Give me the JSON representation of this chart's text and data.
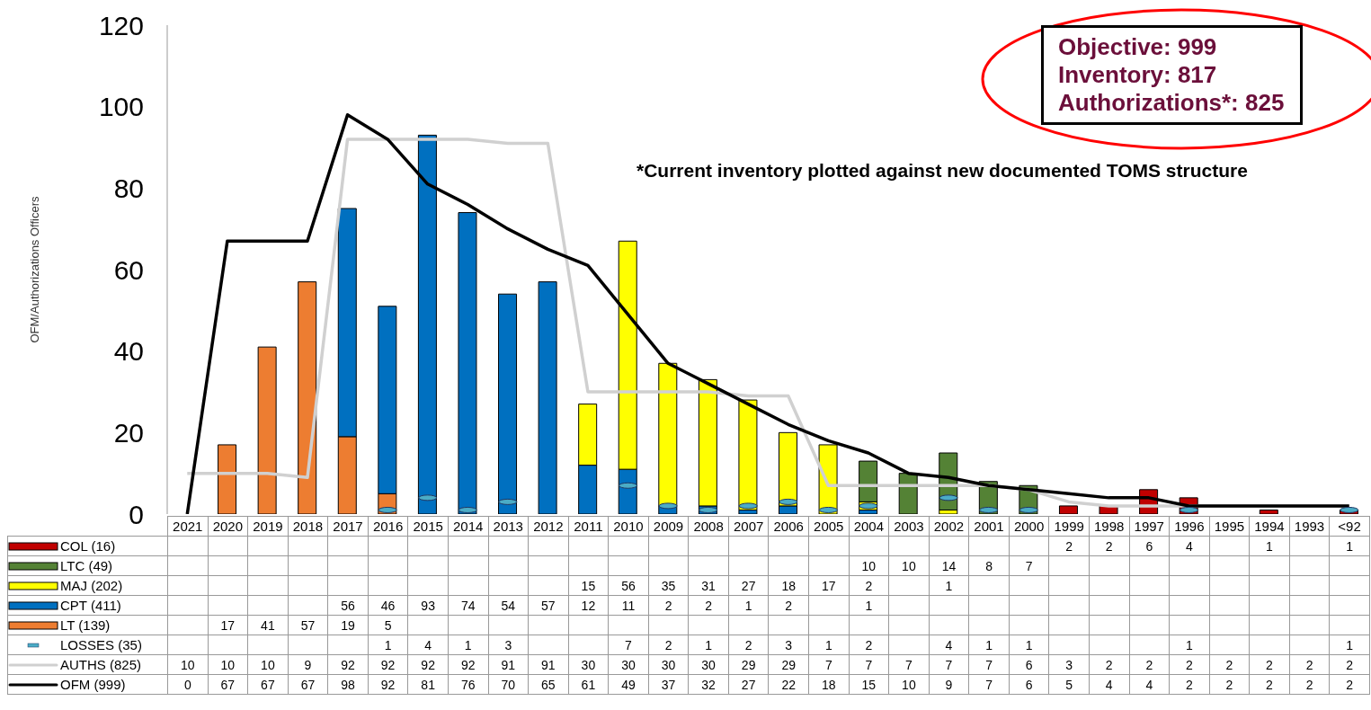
{
  "chart_data": {
    "type": "bar",
    "stacked": true,
    "ylabel": "OFM/Authorizations Officers",
    "ylim": [
      0,
      120
    ],
    "yticks": [
      0,
      20,
      40,
      60,
      80,
      100,
      120
    ],
    "legend": "bottom",
    "data_labels": true,
    "annotations": [
      "*Current inventory plotted against new documented TOMS structure",
      "Objective: 999",
      "Inventory: 817",
      "Authorizations*: 825"
    ],
    "categories": [
      "2021",
      "2020",
      "2019",
      "2018",
      "2017",
      "2016",
      "2015",
      "2014",
      "2013",
      "2012",
      "2011",
      "2010",
      "2009",
      "2008",
      "2007",
      "2006",
      "2005",
      "2004",
      "2003",
      "2002",
      "2001",
      "2000",
      "1999",
      "1998",
      "1997",
      "1996",
      "1995",
      "1994",
      "1993",
      "<92"
    ],
    "series": [
      {
        "name": "LT (139)",
        "color": "#ed7d31",
        "values": [
          null,
          17,
          41,
          57,
          19,
          5,
          null,
          null,
          null,
          null,
          null,
          null,
          null,
          null,
          null,
          null,
          null,
          null,
          null,
          null,
          null,
          null,
          null,
          null,
          null,
          null,
          null,
          null,
          null,
          null
        ]
      },
      {
        "name": "CPT (411)",
        "color": "#0070c0",
        "values": [
          null,
          null,
          null,
          null,
          56,
          46,
          93,
          74,
          54,
          57,
          12,
          11,
          2,
          2,
          1,
          2,
          null,
          1,
          null,
          null,
          null,
          null,
          null,
          null,
          null,
          null,
          null,
          null,
          null,
          null
        ]
      },
      {
        "name": "MAJ (202)",
        "color": "#ffff00",
        "values": [
          null,
          null,
          null,
          null,
          null,
          null,
          null,
          null,
          null,
          null,
          15,
          56,
          35,
          31,
          27,
          18,
          17,
          2,
          null,
          1,
          null,
          null,
          null,
          null,
          null,
          null,
          null,
          null,
          null,
          null
        ]
      },
      {
        "name": "LTC (49)",
        "color": "#548235",
        "values": [
          null,
          null,
          null,
          null,
          null,
          null,
          null,
          null,
          null,
          null,
          null,
          null,
          null,
          null,
          null,
          null,
          null,
          10,
          10,
          14,
          8,
          7,
          null,
          null,
          null,
          null,
          null,
          null,
          null,
          null
        ]
      },
      {
        "name": "COL (16)",
        "color": "#c00000",
        "values": [
          null,
          null,
          null,
          null,
          null,
          null,
          null,
          null,
          null,
          null,
          null,
          null,
          null,
          null,
          null,
          null,
          null,
          null,
          null,
          null,
          null,
          null,
          2,
          2,
          6,
          4,
          null,
          1,
          null,
          1
        ]
      },
      {
        "name": "LOSSES (35)",
        "type": "scatter",
        "color": "#4bacc6",
        "values": [
          null,
          null,
          null,
          null,
          null,
          1,
          4,
          1,
          3,
          null,
          null,
          7,
          2,
          1,
          2,
          3,
          1,
          2,
          null,
          4,
          1,
          1,
          null,
          null,
          null,
          1,
          null,
          null,
          null,
          1
        ]
      },
      {
        "name": "AUTHS (825)",
        "type": "line",
        "color": "#d0d0d0",
        "values": [
          10,
          10,
          10,
          9,
          92,
          92,
          92,
          92,
          91,
          91,
          30,
          30,
          30,
          30,
          29,
          29,
          7,
          7,
          7,
          7,
          7,
          6,
          3,
          2,
          2,
          2,
          2,
          2,
          2,
          2
        ]
      },
      {
        "name": "OFM (999)",
        "type": "line",
        "color": "#000000",
        "values": [
          0,
          67,
          67,
          67,
          98,
          92,
          81,
          76,
          70,
          65,
          61,
          49,
          37,
          32,
          27,
          22,
          18,
          15,
          10,
          9,
          7,
          6,
          5,
          4,
          4,
          2,
          2,
          2,
          2,
          2
        ]
      }
    ]
  }
}
